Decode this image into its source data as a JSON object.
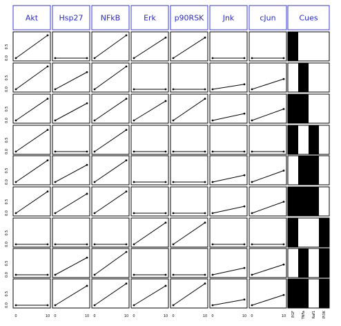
{
  "chart_data": {
    "type": "line",
    "title": "",
    "columns": [
      "Akt",
      "Hsp27",
      "NFkB",
      "Erk",
      "p90RSK",
      "Jnk",
      "cJun"
    ],
    "cues_header": "Cues",
    "cue_labels": [
      "EGF",
      "TNFa",
      "Raf1",
      "PI3K"
    ],
    "x": [
      0,
      10
    ],
    "x_tick_labels": [
      "0",
      "10"
    ],
    "y_tick_labels": [
      "0.0",
      "0.5"
    ],
    "ylim": [
      0,
      1
    ],
    "rows": [
      {
        "values": [
          [
            0,
            1
          ],
          [
            0,
            0
          ],
          [
            0,
            1
          ],
          [
            0,
            0.9
          ],
          [
            0,
            0.9
          ],
          [
            0,
            0
          ],
          [
            0,
            0
          ]
        ],
        "cues": [
          1,
          0,
          0,
          0
        ]
      },
      {
        "values": [
          [
            0,
            1
          ],
          [
            0,
            0.75
          ],
          [
            0,
            1
          ],
          [
            0,
            0
          ],
          [
            0,
            0
          ],
          [
            0,
            0.22
          ],
          [
            0,
            0.45
          ]
        ],
        "cues": [
          0,
          1,
          0,
          0
        ]
      },
      {
        "values": [
          [
            0,
            0.95
          ],
          [
            0,
            0.75
          ],
          [
            0,
            0.95
          ],
          [
            0,
            0.85
          ],
          [
            0,
            0.95
          ],
          [
            0,
            0.3
          ],
          [
            0,
            0.5
          ]
        ],
        "cues": [
          1,
          1,
          0,
          0
        ]
      },
      {
        "values": [
          [
            0,
            0.95
          ],
          [
            0,
            0
          ],
          [
            0,
            0.95
          ],
          [
            0,
            0
          ],
          [
            0,
            0
          ],
          [
            0,
            0
          ],
          [
            0,
            0
          ]
        ],
        "cues": [
          1,
          0,
          1,
          0
        ]
      },
      {
        "values": [
          [
            0,
            0.95
          ],
          [
            0,
            0.75
          ],
          [
            0,
            0.95
          ],
          [
            0,
            0
          ],
          [
            0,
            0
          ],
          [
            0,
            0.3
          ],
          [
            0,
            0.5
          ]
        ],
        "cues": [
          0,
          1,
          1,
          0
        ]
      },
      {
        "values": [
          [
            0,
            0.95
          ],
          [
            0,
            0.85
          ],
          [
            0,
            0.95
          ],
          [
            0,
            0
          ],
          [
            0,
            0
          ],
          [
            0,
            0.3
          ],
          [
            0,
            0.5
          ]
        ],
        "cues": [
          1,
          1,
          1,
          0
        ]
      },
      {
        "values": [
          [
            0,
            0
          ],
          [
            0,
            0
          ],
          [
            0,
            0
          ],
          [
            0,
            0.95
          ],
          [
            0,
            0.95
          ],
          [
            0,
            0
          ],
          [
            0,
            0
          ]
        ],
        "cues": [
          1,
          0,
          0,
          1
        ]
      },
      {
        "values": [
          [
            0,
            0
          ],
          [
            0,
            0.75
          ],
          [
            0,
            1
          ],
          [
            0,
            0
          ],
          [
            0,
            0
          ],
          [
            0,
            0.3
          ],
          [
            0,
            0.45
          ]
        ],
        "cues": [
          0,
          1,
          0,
          1
        ]
      },
      {
        "values": [
          [
            0,
            0
          ],
          [
            0,
            0.85
          ],
          [
            0,
            0.95
          ],
          [
            0,
            0.85
          ],
          [
            0,
            0.95
          ],
          [
            0,
            0.25
          ],
          [
            0,
            0.45
          ]
        ],
        "cues": [
          1,
          1,
          0,
          1
        ]
      }
    ]
  }
}
